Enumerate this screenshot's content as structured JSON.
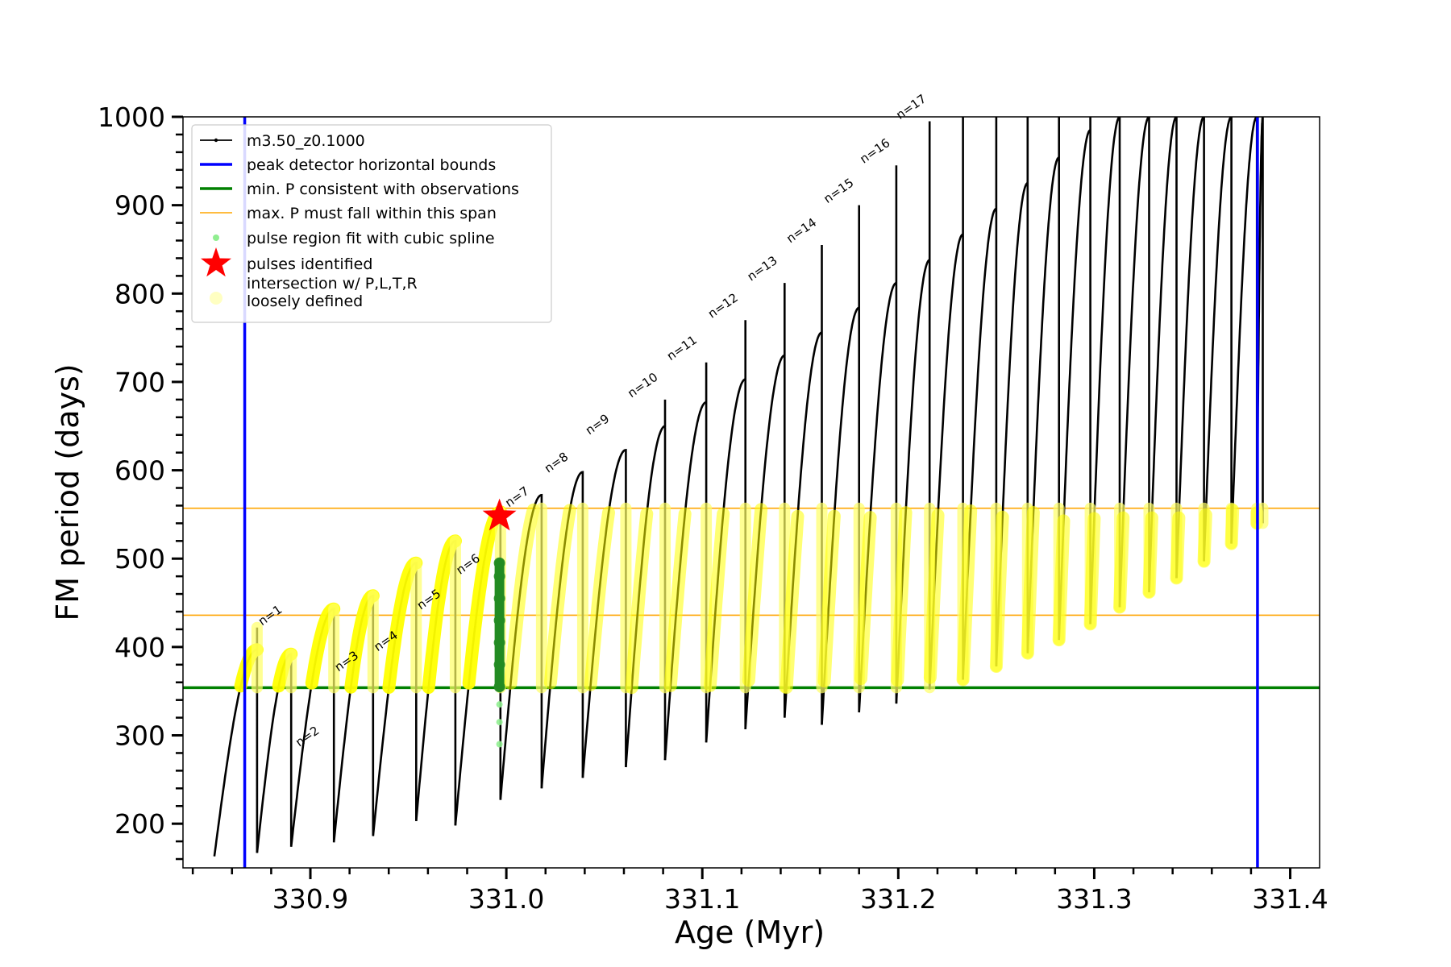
{
  "chart_data": {
    "type": "scatter",
    "xlabel": "Age (Myr)",
    "ylabel": "FM period (days)",
    "xlim": [
      330.835,
      331.415
    ],
    "ylim": [
      150,
      1000
    ],
    "x_ticks": [
      330.9,
      331.0,
      331.1,
      331.2,
      331.3,
      331.4
    ],
    "x_tick_labels": [
      "330.9",
      "331.0",
      "331.1",
      "331.2",
      "331.3",
      "331.4"
    ],
    "y_ticks": [
      200,
      300,
      400,
      500,
      600,
      700,
      800,
      900,
      1000
    ],
    "y_tick_labels": [
      "200",
      "300",
      "400",
      "500",
      "600",
      "700",
      "800",
      "900",
      "1000"
    ],
    "grid": false,
    "legend_position": "top-left",
    "legend": [
      {
        "label": "m3.50_z0.1000",
        "kind": "line-marker",
        "color": "#000000"
      },
      {
        "label": "peak detector horizontal bounds",
        "kind": "thick-line",
        "color": "#0000ff"
      },
      {
        "label": "min. P consistent with observations",
        "kind": "thick-line",
        "color": "#008000"
      },
      {
        "label": "max. P must fall within this span",
        "kind": "thin-line",
        "color": "#ffa500"
      },
      {
        "label": "pulse region fit with cubic spline",
        "kind": "dot",
        "color": "#90ee90"
      },
      {
        "label": "pulses identified",
        "kind": "star",
        "color": "#ff0000"
      },
      {
        "label": "intersection w/ P,L,T,R",
        "label2": "loosely defined",
        "kind": "big-dot",
        "color": "#ffff99"
      }
    ],
    "vlines": [
      {
        "x": 330.8665,
        "color": "#0000ff",
        "name": "peak detector horizontal bounds"
      },
      {
        "x": 331.3833,
        "color": "#0000ff",
        "name": "peak detector horizontal bounds"
      }
    ],
    "hlines": [
      {
        "y": 354,
        "color": "#008000",
        "name": "min. P consistent with observations"
      },
      {
        "y": 436,
        "color": "#ffa500",
        "name": "max. P must fall within this span"
      },
      {
        "y": 557,
        "color": "#ffa500",
        "name": "max. P must fall within this span"
      }
    ],
    "pulse_cycles": [
      {
        "start": 330.851,
        "start_y": 163,
        "end": 330.8728,
        "peak": 397,
        "spike": 422,
        "drop_min": 167
      },
      {
        "start": 330.8728,
        "start_y": 167,
        "end": 330.8902,
        "peak": 392,
        "spike": 392,
        "drop_min": 174
      },
      {
        "start": 330.8902,
        "start_y": 174,
        "end": 330.912,
        "peak": 443,
        "spike": 443,
        "drop_min": 179
      },
      {
        "start": 330.912,
        "start_y": 179,
        "end": 330.932,
        "peak": 458,
        "spike": 458,
        "drop_min": 186
      },
      {
        "start": 330.932,
        "start_y": 186,
        "end": 330.954,
        "peak": 495,
        "spike": 495,
        "drop_min": 203
      },
      {
        "start": 330.954,
        "start_y": 203,
        "end": 330.974,
        "peak": 520,
        "spike": 520,
        "drop_min": 198
      },
      {
        "start": 330.974,
        "start_y": 198,
        "end": 330.997,
        "peak": 553,
        "spike": 553,
        "drop_min": 227
      },
      {
        "start": 330.997,
        "start_y": 227,
        "end": 331.018,
        "peak": 572,
        "spike": 572,
        "drop_min": 240
      },
      {
        "start": 331.018,
        "start_y": 240,
        "end": 331.039,
        "peak": 598,
        "spike": 598,
        "drop_min": 252
      },
      {
        "start": 331.039,
        "start_y": 252,
        "end": 331.061,
        "peak": 623,
        "spike": 623,
        "drop_min": 264
      },
      {
        "start": 331.061,
        "start_y": 264,
        "end": 331.081,
        "peak": 650,
        "spike": 680,
        "drop_min": 272
      },
      {
        "start": 331.081,
        "start_y": 272,
        "end": 331.102,
        "peak": 677,
        "spike": 722,
        "drop_min": 292
      },
      {
        "start": 331.102,
        "start_y": 292,
        "end": 331.122,
        "peak": 703,
        "spike": 770,
        "drop_min": 307
      },
      {
        "start": 331.122,
        "start_y": 307,
        "end": 331.142,
        "peak": 730,
        "spike": 812,
        "drop_min": 320
      },
      {
        "start": 331.142,
        "start_y": 320,
        "end": 331.161,
        "peak": 756,
        "spike": 855,
        "drop_min": 312
      },
      {
        "start": 331.161,
        "start_y": 312,
        "end": 331.18,
        "peak": 784,
        "spike": 900,
        "drop_min": 326
      },
      {
        "start": 331.18,
        "start_y": 326,
        "end": 331.199,
        "peak": 812,
        "spike": 945,
        "drop_min": 336
      },
      {
        "start": 331.199,
        "start_y": 336,
        "end": 331.216,
        "peak": 838,
        "spike": 995,
        "drop_min": 352
      },
      {
        "start": 331.216,
        "start_y": 352,
        "end": 331.233,
        "peak": 867,
        "spike": 1000,
        "drop_min": 363
      },
      {
        "start": 331.233,
        "start_y": 363,
        "end": 331.25,
        "peak": 896,
        "spike": 1000,
        "drop_min": 378
      },
      {
        "start": 331.25,
        "start_y": 378,
        "end": 331.266,
        "peak": 925,
        "spike": 1000,
        "drop_min": 393
      },
      {
        "start": 331.266,
        "start_y": 393,
        "end": 331.282,
        "peak": 954,
        "spike": 1000,
        "drop_min": 408
      },
      {
        "start": 331.282,
        "start_y": 408,
        "end": 331.298,
        "peak": 985,
        "spike": 1000,
        "drop_min": 426
      },
      {
        "start": 331.298,
        "start_y": 426,
        "end": 331.313,
        "peak": 1000,
        "spike": 1000,
        "drop_min": 445
      },
      {
        "start": 331.313,
        "start_y": 445,
        "end": 331.328,
        "peak": 1000,
        "spike": 1000,
        "drop_min": 462
      },
      {
        "start": 331.328,
        "start_y": 462,
        "end": 331.342,
        "peak": 1000,
        "spike": 1000,
        "drop_min": 478
      },
      {
        "start": 331.342,
        "start_y": 478,
        "end": 331.356,
        "peak": 1000,
        "spike": 1000,
        "drop_min": 497
      },
      {
        "start": 331.356,
        "start_y": 497,
        "end": 331.37,
        "peak": 1000,
        "spike": 1000,
        "drop_min": 517
      },
      {
        "start": 331.37,
        "start_y": 517,
        "end": 331.383,
        "peak": 1000,
        "spike": 1000,
        "drop_min": 540
      },
      {
        "start": 331.383,
        "start_y": 540,
        "end": 331.386,
        "peak": 1000,
        "spike": 1000,
        "drop_min": 540
      }
    ],
    "pulses_identified": [
      {
        "x": 330.9965,
        "y": 548
      }
    ],
    "spline_fit_points": {
      "x": 330.9965,
      "y": [
        290,
        315,
        335,
        355,
        380,
        405,
        430,
        455,
        480,
        495
      ]
    },
    "pulse_annotations": [
      {
        "text": "n=1",
        "x": 330.8745,
        "y": 422
      },
      {
        "text": "n=2",
        "x": 330.8935,
        "y": 285
      },
      {
        "text": "n=3",
        "x": 330.9135,
        "y": 370
      },
      {
        "text": "n=4",
        "x": 330.9335,
        "y": 393
      },
      {
        "text": "n=5",
        "x": 330.9555,
        "y": 440
      },
      {
        "text": "n=6",
        "x": 330.9755,
        "y": 480
      },
      {
        "text": "n=7",
        "x": 331.0005,
        "y": 556
      },
      {
        "text": "n=8",
        "x": 331.0205,
        "y": 595
      },
      {
        "text": "n=9",
        "x": 331.0415,
        "y": 638
      },
      {
        "text": "n=10",
        "x": 331.063,
        "y": 680
      },
      {
        "text": "n=11",
        "x": 331.083,
        "y": 722
      },
      {
        "text": "n=12",
        "x": 331.104,
        "y": 770
      },
      {
        "text": "n=13",
        "x": 331.124,
        "y": 812
      },
      {
        "text": "n=14",
        "x": 331.144,
        "y": 855
      },
      {
        "text": "n=15",
        "x": 331.163,
        "y": 900
      },
      {
        "text": "n=16",
        "x": 331.1815,
        "y": 945
      },
      {
        "text": "n=17",
        "x": 331.2,
        "y": 995
      }
    ]
  }
}
